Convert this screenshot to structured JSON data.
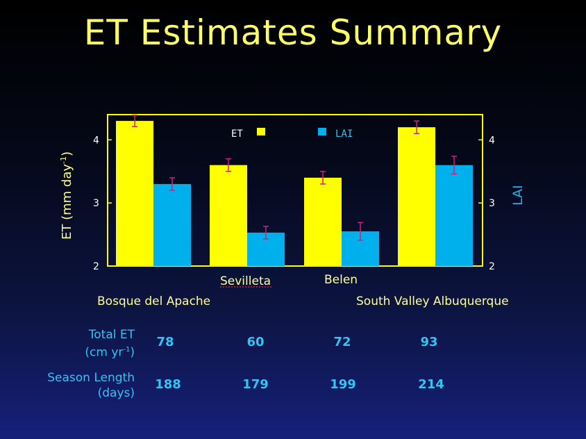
{
  "title": "ET Estimates Summary",
  "chart_data": {
    "type": "bar",
    "categories": [
      "Bosque del Apache",
      "Sevilleta",
      "Belen",
      "South Valley Albuquerque"
    ],
    "series": [
      {
        "name": "ET",
        "color": "#ffff00",
        "values": [
          4.3,
          3.6,
          3.4,
          4.2
        ],
        "error": [
          0.09,
          0.1,
          0.1,
          0.1
        ]
      },
      {
        "name": "LAI",
        "color": "#00b0ec",
        "values": [
          3.3,
          2.53,
          2.55,
          3.6
        ],
        "error": [
          0.1,
          0.1,
          0.14,
          0.14
        ]
      }
    ],
    "ylim": [
      2,
      4.4
    ],
    "yticks": [
      "2",
      "3",
      "4"
    ],
    "ylabel_left_main": "ET (mm day",
    "ylabel_left_sup": "-1",
    "ylabel_left_close": ")",
    "ylabel_right": "LAI",
    "legend_placement": "top"
  },
  "table": {
    "total_et": {
      "label_line1": "Total ET",
      "label_line2_main": "(cm yr",
      "label_line2_sup": "-1",
      "label_line2_close": ")",
      "values": [
        "78",
        "60",
        "72",
        "93"
      ]
    },
    "season_length": {
      "label_line1": "Season Length",
      "label_line2": "(days)",
      "values": [
        "188",
        "179",
        "199",
        "214"
      ]
    }
  }
}
